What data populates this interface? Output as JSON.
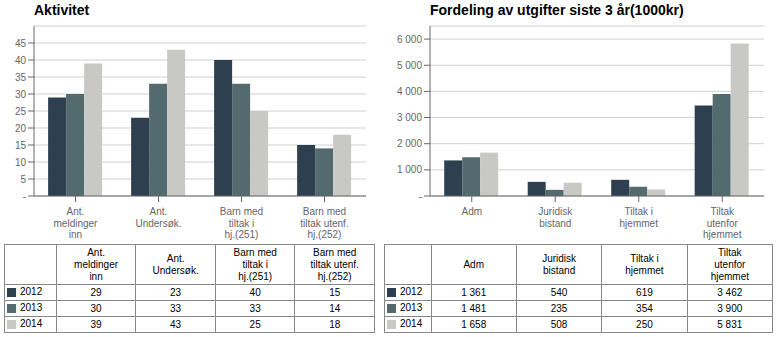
{
  "chart_data": [
    {
      "type": "bar",
      "title": "Aktivitet",
      "categories": [
        "Ant.\nmeldinger\ninn",
        "Ant.\nUndersøk.",
        "Barn med\ntiltak i\nhj.(251)",
        "Barn med\ntiltak utenf.\nhj.(252)"
      ],
      "series": [
        {
          "name": "2012",
          "color": "#2e3f4f",
          "values": [
            29,
            23,
            40,
            15
          ]
        },
        {
          "name": "2013",
          "color": "#536b6e",
          "values": [
            30,
            33,
            33,
            14
          ]
        },
        {
          "name": "2014",
          "color": "#c8c8c4",
          "values": [
            39,
            43,
            25,
            18
          ]
        }
      ],
      "ylim": [
        0,
        50
      ],
      "yticks": [
        {
          "value": 0,
          "label": "-"
        },
        5,
        10,
        15,
        20,
        25,
        30,
        35,
        40,
        45
      ],
      "grid": true,
      "data_labels": true
    },
    {
      "type": "bar",
      "title": "Fordeling av utgifter siste 3 år(1000kr)",
      "categories": [
        "Adm",
        "Juridisk\nbistand",
        "Tiltak i\nhjemmet",
        "Tiltak\nutenfor\nhjemmet"
      ],
      "series": [
        {
          "name": "2012",
          "color": "#2e3f4f",
          "values": [
            1361,
            540,
            619,
            3462
          ],
          "value_labels": [
            "1 361",
            "540",
            "619",
            "3 462"
          ]
        },
        {
          "name": "2013",
          "color": "#536b6e",
          "values": [
            1481,
            235,
            354,
            3900
          ],
          "value_labels": [
            "1 481",
            "235",
            "354",
            "3 900"
          ]
        },
        {
          "name": "2014",
          "color": "#c8c8c4",
          "values": [
            1658,
            508,
            250,
            5831
          ],
          "value_labels": [
            "1 658",
            "508",
            "250",
            "5 831"
          ]
        }
      ],
      "ylim": [
        0,
        6500
      ],
      "yticks": [
        {
          "value": 0,
          "label": "-"
        },
        {
          "value": 1000,
          "label": "1 000"
        },
        {
          "value": 2000,
          "label": "2 000"
        },
        {
          "value": 3000,
          "label": "3 000"
        },
        {
          "value": 4000,
          "label": "4 000"
        },
        {
          "value": 5000,
          "label": "5 000"
        },
        {
          "value": 6000,
          "label": "6 000"
        }
      ],
      "grid": true,
      "data_labels": true
    }
  ]
}
